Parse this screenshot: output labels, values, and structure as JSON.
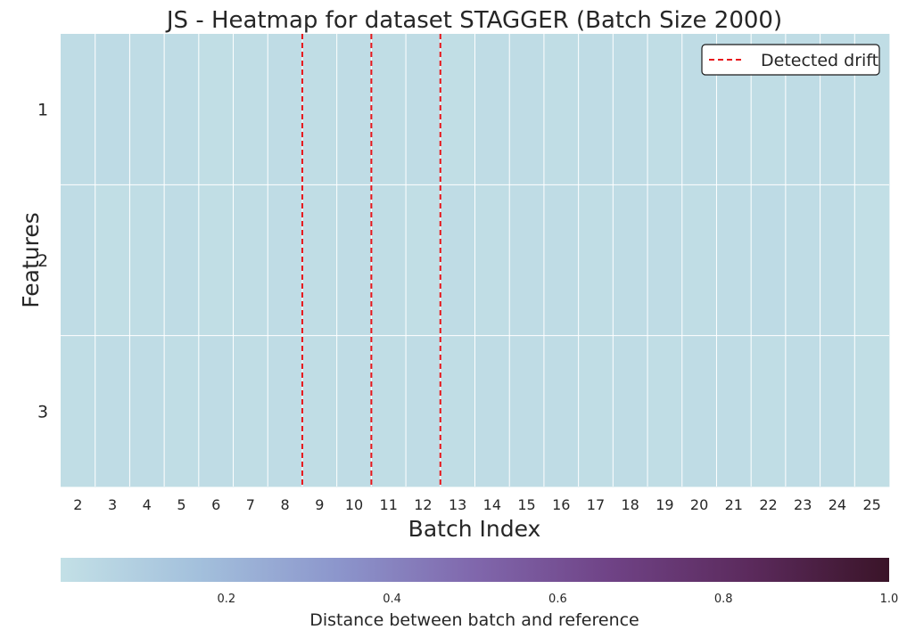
{
  "chart_data": {
    "type": "heatmap",
    "title": "JS - Heatmap for dataset STAGGER (Batch Size 2000)",
    "xlabel": "Batch Index",
    "ylabel": "Features",
    "x": [
      2,
      3,
      4,
      5,
      6,
      7,
      8,
      9,
      10,
      11,
      12,
      13,
      14,
      15,
      16,
      17,
      18,
      19,
      20,
      21,
      22,
      23,
      24,
      25
    ],
    "y": [
      "1",
      "2",
      "3"
    ],
    "values": [
      [
        0.02,
        0.025,
        0.02,
        0.02,
        0.01,
        0.015,
        0.02,
        0.015,
        0.02,
        0.015,
        0.02,
        0.01,
        0.02,
        0.02,
        0.015,
        0.02,
        0.02,
        0.015,
        0.02,
        0.02,
        0.015,
        0.02,
        0.02,
        0.015
      ],
      [
        0.02,
        0.01,
        0.015,
        0.02,
        0.01,
        0.015,
        0.02,
        0.015,
        0.02,
        0.015,
        0.01,
        0.02,
        0.015,
        0.02,
        0.02,
        0.015,
        0.02,
        0.02,
        0.015,
        0.02,
        0.025,
        0.02,
        0.02,
        0.005
      ],
      [
        0.015,
        0.02,
        0.02,
        0.015,
        0.02,
        0.015,
        0.02,
        0.015,
        0.02,
        0.015,
        0.02,
        0.015,
        0.02,
        0.02,
        0.02,
        0.015,
        0.02,
        0.015,
        0.02,
        0.02,
        0.015,
        0.02,
        0.02,
        0.01
      ]
    ],
    "drift_lines": [
      8.5,
      10.5,
      12.5
    ],
    "legend": {
      "label": "Detected drift",
      "position": "top-right"
    },
    "colorbar": {
      "label": "Distance between batch and reference",
      "ticks": [
        0.2,
        0.4,
        0.6,
        0.8,
        1.0
      ],
      "tick_labels": [
        "0.2",
        "0.4",
        "0.6",
        "0.8",
        "1.0"
      ],
      "range": [
        0.0,
        1.0
      ]
    },
    "colors": {
      "colormap": [
        "#c3e0e6",
        "#a3c0dc",
        "#8c96cc",
        "#8067ac",
        "#6f4285",
        "#5b2a5c",
        "#3a1428"
      ],
      "drift_line": "#e8161b",
      "grid": "#ffffff"
    }
  }
}
